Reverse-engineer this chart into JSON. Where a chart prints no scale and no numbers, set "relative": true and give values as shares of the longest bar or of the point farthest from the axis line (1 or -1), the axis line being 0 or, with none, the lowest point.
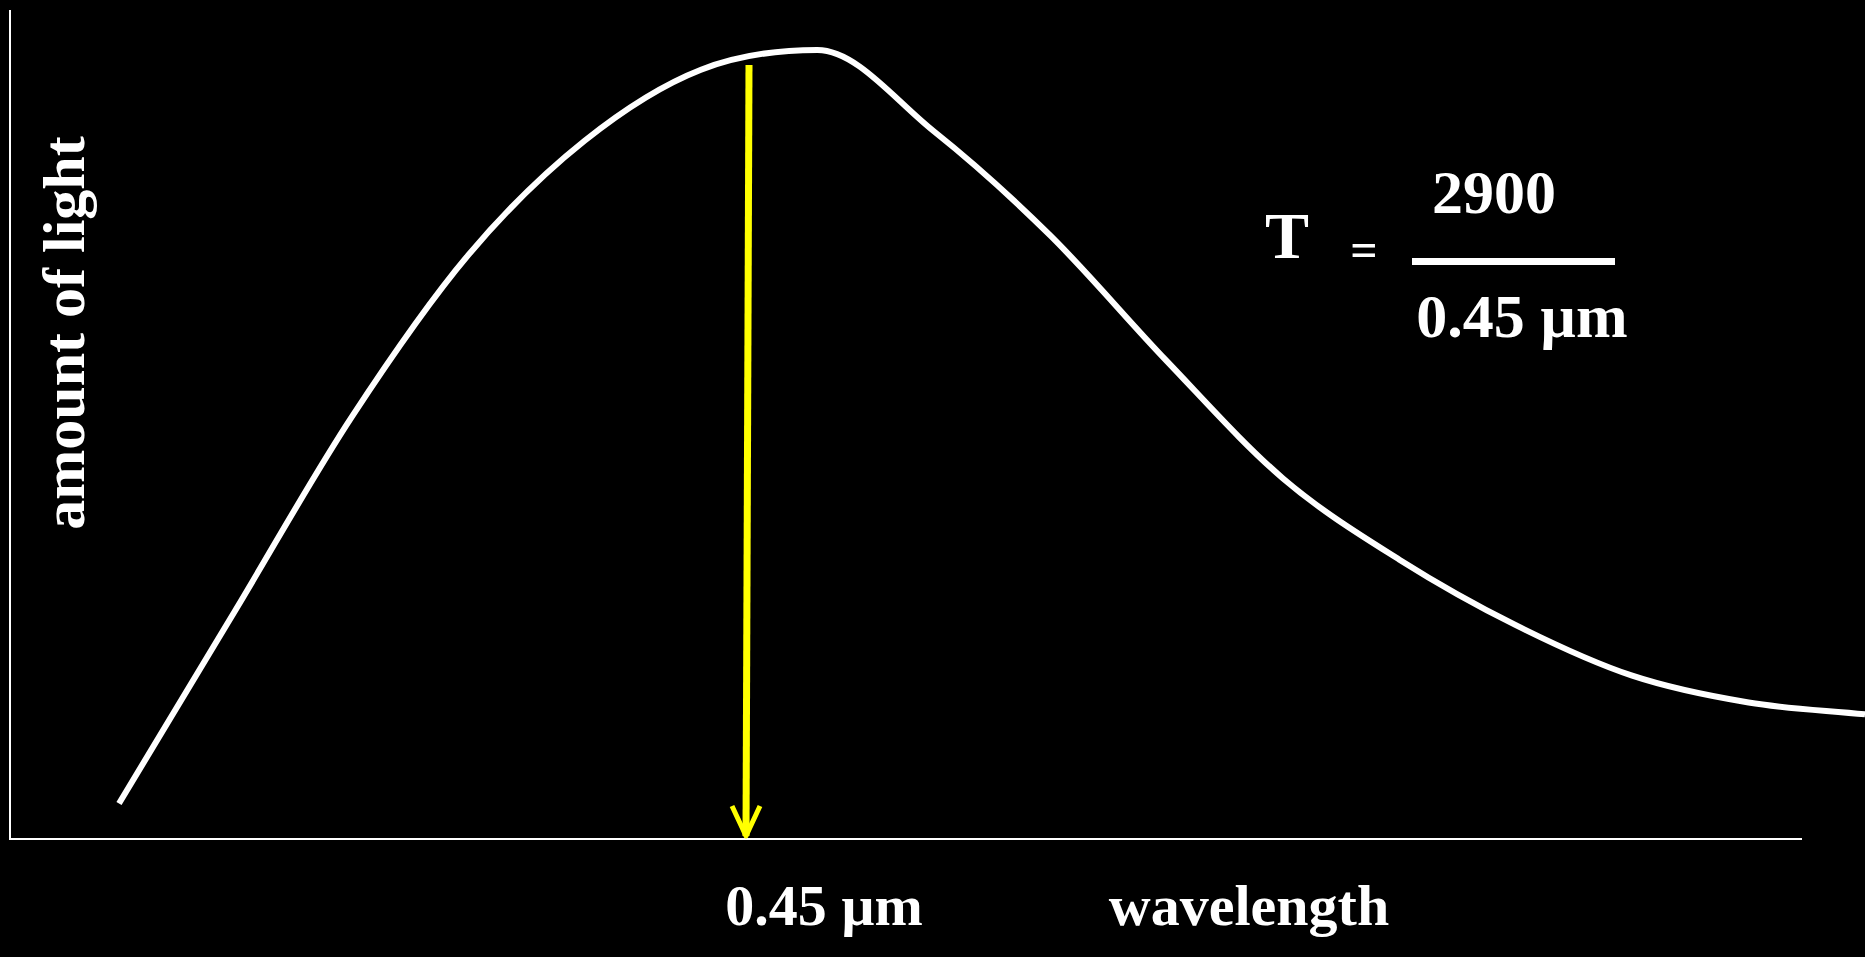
{
  "chart_data": {
    "type": "line",
    "relative": true,
    "categories": [
      null,
      null,
      null,
      null,
      null,
      null,
      null,
      null,
      null,
      null,
      null,
      null,
      null,
      null,
      null,
      null
    ],
    "values": [
      0.045,
      0.29,
      0.535,
      0.74,
      0.885,
      0.975,
      1,
      0.897,
      0.765,
      0.606,
      0.457,
      0.354,
      0.271,
      0.207,
      0.173,
      0.158
    ],
    "color": "#ffffff",
    "marker": "none",
    "line_style": "solid",
    "ylabel": "amount of light",
    "xlabel": "wavelength",
    "annotations": [
      "0.45 µm",
      "T",
      "=",
      "2900",
      "0.45 µm"
    ]
  }
}
